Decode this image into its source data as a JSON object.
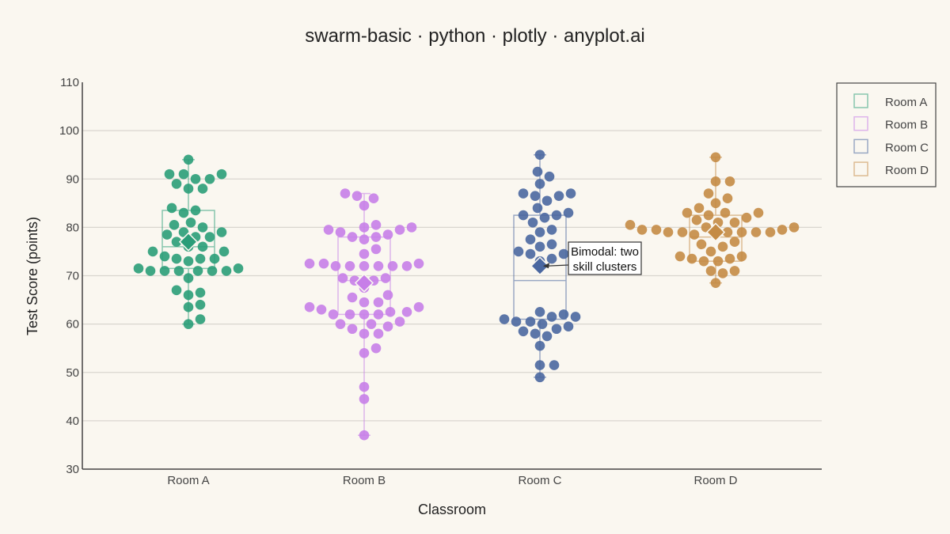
{
  "chart_data": {
    "type": "scatter",
    "subtype": "swarm",
    "title": "swarm-basic · python · plotly · anyplot.ai",
    "xlabel": "Classroom",
    "ylabel": "Test Score (points)",
    "ylim": [
      30,
      110
    ],
    "yticks": [
      30,
      40,
      50,
      60,
      70,
      80,
      90,
      100,
      110
    ],
    "grid": true,
    "legend_position": "top-right",
    "categories": [
      "Room A",
      "Room B",
      "Room C",
      "Room D"
    ],
    "series": [
      {
        "name": "Room A",
        "color": "#2a9d78",
        "mean": 77,
        "box": {
          "q1": 71.5,
          "median": 76,
          "q3": 83.5,
          "whisker_low": 60,
          "whisker_high": 94
        },
        "values": [
          94,
          91,
          91,
          91,
          90,
          90,
          89,
          88,
          88,
          84,
          83.5,
          83,
          81,
          80.5,
          80,
          79,
          79,
          78.5,
          78,
          78,
          77,
          76,
          76,
          75,
          75,
          74,
          73.5,
          73.5,
          73.5,
          73,
          71.5,
          71.5,
          71,
          71,
          71,
          71,
          71,
          71,
          69.5,
          67,
          66.5,
          66,
          64,
          63.5,
          61,
          60
        ]
      },
      {
        "name": "Room B",
        "color": "#c77ee8",
        "mean": 68.5,
        "box": {
          "q1": 62,
          "median": 69,
          "q3": 78,
          "whisker_low": 37,
          "whisker_high": 87
        },
        "values": [
          87,
          86.5,
          86,
          84.5,
          80.5,
          80,
          80,
          79.5,
          79.5,
          79,
          78.5,
          78,
          78,
          77.5,
          75.5,
          74.5,
          72.5,
          72.5,
          72.5,
          72,
          72,
          72,
          72,
          72,
          72,
          69.5,
          69.5,
          69,
          69,
          67.5,
          66,
          65.5,
          64.5,
          64.5,
          63.5,
          63.5,
          63,
          62.5,
          62.5,
          62,
          62,
          62,
          62,
          60.5,
          60,
          60,
          59.5,
          59,
          58,
          58,
          55,
          54,
          47,
          44.5,
          37
        ]
      },
      {
        "name": "Room C",
        "color": "#4a67a0",
        "mean": 72,
        "box": {
          "q1": 61,
          "median": 69,
          "q3": 82.5,
          "whisker_low": 49,
          "whisker_high": 95
        },
        "values": [
          95,
          91.5,
          90.5,
          89,
          87,
          87,
          86.5,
          86.5,
          85.5,
          84,
          83,
          82.5,
          82.5,
          82,
          81,
          79.5,
          79,
          77.5,
          76.5,
          76,
          75,
          75,
          74.5,
          74.5,
          73.5,
          73,
          62.5,
          62,
          61.5,
          61.5,
          61,
          60.5,
          60.5,
          60,
          59.5,
          59,
          58.5,
          58,
          57.5,
          55.5,
          51.5,
          51.5,
          49
        ]
      },
      {
        "name": "Room D",
        "color": "#c48b45",
        "mean": 79,
        "box": {
          "q1": 73,
          "median": 78,
          "q3": 82.5,
          "whisker_low": 68.5,
          "whisker_high": 94.5
        },
        "values": [
          94.5,
          89.5,
          89.5,
          87,
          86,
          85,
          84,
          83,
          83,
          83,
          82.5,
          82,
          81.5,
          81,
          81,
          80.5,
          80,
          80,
          79.5,
          79.5,
          79.5,
          79,
          79,
          79,
          79,
          79,
          79,
          78.5,
          78.5,
          77,
          76.5,
          76,
          75,
          74,
          74,
          73.5,
          73.5,
          73,
          73,
          71,
          71,
          70.5,
          68.5
        ]
      }
    ],
    "annotations": [
      {
        "text": [
          "Bimodal: two",
          "skill clusters"
        ],
        "category": "Room C",
        "y": 72
      }
    ]
  }
}
